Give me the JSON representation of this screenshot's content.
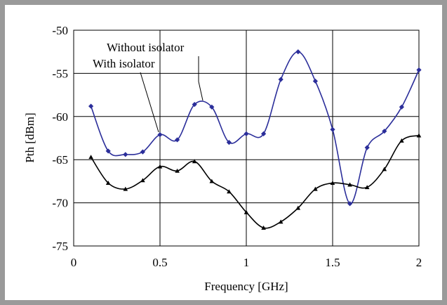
{
  "chart_data": {
    "type": "line",
    "title": "",
    "xlabel": "Frequency [GHz]",
    "ylabel": "Pth [dBm]",
    "xlim": [
      0,
      2
    ],
    "ylim": [
      -75,
      -50
    ],
    "xticks": [
      0,
      0.5,
      1,
      1.5,
      2
    ],
    "xtick_labels": [
      "0",
      "0.5",
      "1",
      "1.5",
      "2"
    ],
    "yticks": [
      -50,
      -55,
      -60,
      -65,
      -70,
      -75
    ],
    "ytick_labels": [
      "-50",
      "-55",
      "-60",
      "-65",
      "-70",
      "-75"
    ],
    "grid": true,
    "legend": "none",
    "series": [
      {
        "name": "Without isolator",
        "color": "#2b2e9a",
        "marker": "diamond",
        "x": [
          0.1,
          0.2,
          0.3,
          0.4,
          0.5,
          0.6,
          0.7,
          0.8,
          0.9,
          1.0,
          1.1,
          1.2,
          1.3,
          1.4,
          1.5,
          1.6,
          1.7,
          1.8,
          1.9,
          2.0
        ],
        "values": [
          -58.8,
          -64.0,
          -64.4,
          -64.1,
          -62.1,
          -62.7,
          -58.6,
          -58.9,
          -63.0,
          -62.0,
          -62.0,
          -55.7,
          -52.5,
          -55.9,
          -61.5,
          -70.1,
          -63.6,
          -61.7,
          -58.9,
          -54.6
        ]
      },
      {
        "name": "With isolator",
        "color": "#000000",
        "marker": "triangle",
        "x": [
          0.1,
          0.2,
          0.3,
          0.4,
          0.5,
          0.6,
          0.7,
          0.8,
          0.9,
          1.0,
          1.1,
          1.2,
          1.3,
          1.4,
          1.5,
          1.6,
          1.7,
          1.8,
          1.9,
          2.0
        ],
        "values": [
          -64.7,
          -67.7,
          -68.4,
          -67.4,
          -65.8,
          -66.3,
          -65.2,
          -67.5,
          -68.7,
          -71.1,
          -72.9,
          -72.2,
          -70.6,
          -68.4,
          -67.7,
          -67.9,
          -68.2,
          -66.1,
          -62.8,
          -62.2
        ]
      }
    ],
    "annotations": [
      {
        "text": "Without isolator",
        "series": 0
      },
      {
        "text": "With isolator",
        "series": 1
      }
    ]
  }
}
